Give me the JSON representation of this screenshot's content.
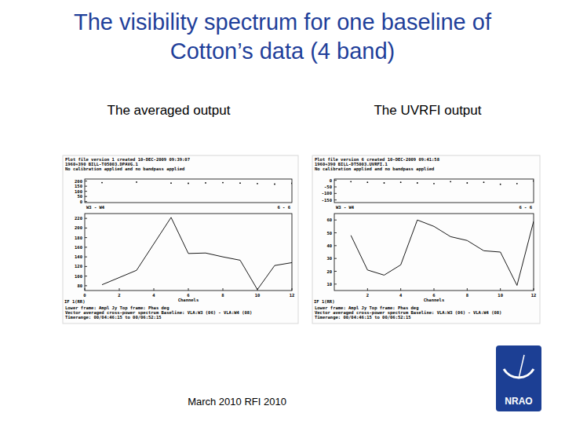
{
  "slide": {
    "title": [
      "The visibility spectrum for one baseline of",
      "Cotton’s data (4 band)"
    ],
    "footer": "March 2010   RFI 2010",
    "logo": "NRAO"
  },
  "plots": [
    {
      "heading": "The averaged output",
      "header": [
        "Plot file version 1  created 10-DEC-2009 09:39:07",
        "1960+390  BILL-T05003.DPAVG.1",
        "No calibration applied and no bandpass applied"
      ],
      "baseline": "W3 - W4",
      "stokes": "6 - 6",
      "if_label": "IF 1(RR)",
      "footer": [
        "Lower frame: Ampl Jy   Top frame: Phas deg",
        "Vector averaged cross-power spectrum   Baseline: VLA:W3 (06) - VLA:W4 (08)",
        "Timerange: 00/04:46:15 to 00/06:52:15"
      ]
    },
    {
      "heading": "The UVRFI output",
      "header": [
        "Plot file version 6  created 10-DEC-2009 09:41:58",
        "1960+390  BILL-DT5003.UVRFI.1",
        "No calibration applied and no bandpass applied"
      ],
      "baseline": "W3 - W4",
      "stokes": "6 - 6",
      "if_label": "IF 1(RR)",
      "footer": [
        "Lower frame: Ampl Jy   Top frame: Phas deg",
        "Vector averaged cross-power spectrum   Baseline: VLA:W3 (06) - VLA:W4 (08)",
        "Timerange: 00/04:46:15 to 00/06:52:15"
      ]
    }
  ],
  "chart_data": [
    {
      "type": "scatter",
      "marker": "dot",
      "color": "#000000",
      "grid": false,
      "tick_labels": "y",
      "x": [
        1,
        3,
        5,
        6,
        7,
        8,
        9,
        10,
        11,
        12
      ],
      "values": [
        185,
        190,
        180,
        178,
        182,
        185,
        180,
        175,
        170,
        178
      ],
      "xlim": [
        0,
        12
      ],
      "ylim": [
        -10,
        220
      ],
      "yticks": [
        0,
        50,
        100,
        150,
        200
      ]
    },
    {
      "type": "line",
      "color": "#000000",
      "grid": false,
      "x_label": "Channels",
      "x": [
        1,
        3,
        5,
        6,
        7,
        8,
        9,
        10,
        11,
        12
      ],
      "values": [
        82,
        112,
        222,
        147,
        148,
        140,
        133,
        72,
        122,
        128
      ],
      "xlim": [
        0,
        12
      ],
      "xticks": [
        0,
        2,
        4,
        6,
        8,
        10,
        12
      ],
      "ylim": [
        70,
        230
      ],
      "yticks": [
        80,
        100,
        120,
        140,
        160,
        180,
        200,
        220
      ]
    },
    {
      "type": "scatter",
      "marker": "dot",
      "color": "#000000",
      "grid": false,
      "tick_labels": "y",
      "x": [
        1,
        2,
        3,
        4,
        5,
        6,
        7,
        8,
        9,
        10,
        11,
        12
      ],
      "values": [
        -10,
        -15,
        -20,
        -15,
        -20,
        -25,
        -10,
        -20,
        -15,
        -30,
        -25,
        -5
      ],
      "xlim": [
        0,
        12
      ],
      "ylim": [
        -170,
        10
      ],
      "yticks": [
        -150,
        -100,
        -50,
        0
      ]
    },
    {
      "type": "line",
      "color": "#000000",
      "grid": false,
      "x_label": "Channels",
      "x": [
        1,
        2,
        3,
        4,
        5,
        6,
        7,
        8,
        9,
        10,
        11,
        12
      ],
      "values": [
        48,
        21,
        17,
        25,
        60,
        55,
        47,
        44,
        36,
        35,
        9,
        59
      ],
      "xlim": [
        0,
        12
      ],
      "xticks": [
        2,
        4,
        6,
        8,
        10,
        12
      ],
      "ylim": [
        5,
        65
      ],
      "yticks": [
        10,
        20,
        30,
        40,
        50,
        60
      ]
    }
  ]
}
